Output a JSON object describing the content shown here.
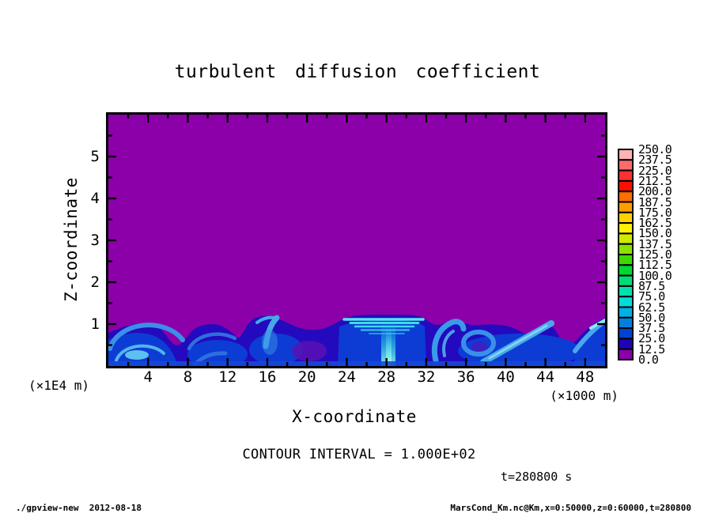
{
  "chart_data": {
    "type": "heatmap",
    "title": "turbulent diffusion coefficient",
    "xlabel": "X-coordinate",
    "x_unit_label": "(×1000 m)",
    "ylabel": "Z-coordinate",
    "y_unit_label": "(×1E4 m)",
    "axes": {
      "x": {
        "min": 0,
        "max": 50,
        "major_step": 4,
        "minor_step": 2,
        "tick_labels": [
          "4",
          "8",
          "12",
          "16",
          "20",
          "24",
          "28",
          "32",
          "36",
          "40",
          "44",
          "48"
        ]
      },
      "z": {
        "min": 0,
        "max": 6,
        "major_step": 1,
        "minor_step": 0.5,
        "tick_labels": [
          "1",
          "2",
          "3",
          "4",
          "5"
        ]
      }
    },
    "contour_interval_label": "CONTOUR INTERVAL = 1.000E+02",
    "time_label": "t=280800 s",
    "colorbar": {
      "levels": [
        0,
        12.5,
        25,
        37.5,
        50,
        62.5,
        75,
        87.5,
        100,
        112.5,
        125,
        137.5,
        150,
        162.5,
        175,
        187.5,
        200,
        212.5,
        225,
        237.5,
        250
      ],
      "tick_labels_top_to_bottom": [
        "250.0",
        "237.5",
        "225.0",
        "212.5",
        "200.0",
        "187.5",
        "175.0",
        "162.5",
        "150.0",
        "137.5",
        "125.0",
        "112.5",
        "100.0",
        "87.5",
        "75.0",
        "62.5",
        "50.0",
        "37.5",
        "25.0",
        "12.5",
        "0.0"
      ],
      "colors_bottom_to_top": [
        "#8c00aa",
        "#1d04b8",
        "#0042d2",
        "#0080dc",
        "#00b0e6",
        "#00dcdc",
        "#00e2ae",
        "#00dc78",
        "#00d832",
        "#3cd800",
        "#8ae200",
        "#cdeb00",
        "#fef000",
        "#ffd000",
        "#ff9e00",
        "#ff6e00",
        "#fa1000",
        "#ff3030",
        "#ff6b6b",
        "#ffb3b3"
      ]
    },
    "colors": {
      "background": "#8c00aa",
      "layer_dark_blue": "#230abe",
      "layer_mid_blue": "#0c3cd4",
      "layer_light_blue": "#3b8fe8",
      "layer_cyan": "#3fd8ec"
    },
    "field_summary": {
      "background_value": 0,
      "turbulent_layer_top_z_x1e4m": 1.0,
      "typical_layer_values": "12.5–62.5",
      "notable_features": [
        "convective plume with layered horizontal striations near x=24–32",
        "bright rising column near x=28 reaching the surface",
        "vortex arcs near x=2–8 and x=10–13",
        "updraft filament near x=16–17",
        "curled eddy near x=33–36 and ring eddy near x=37",
        "inclined bright streak from x=38 up to x=45",
        "rising filament at the right edge near x=49–50"
      ]
    }
  },
  "footer": {
    "left": "./gpview-new  2012-08-18",
    "right": "MarsCond_Km.nc@Km,x=0:50000,z=0:60000,t=280800"
  }
}
